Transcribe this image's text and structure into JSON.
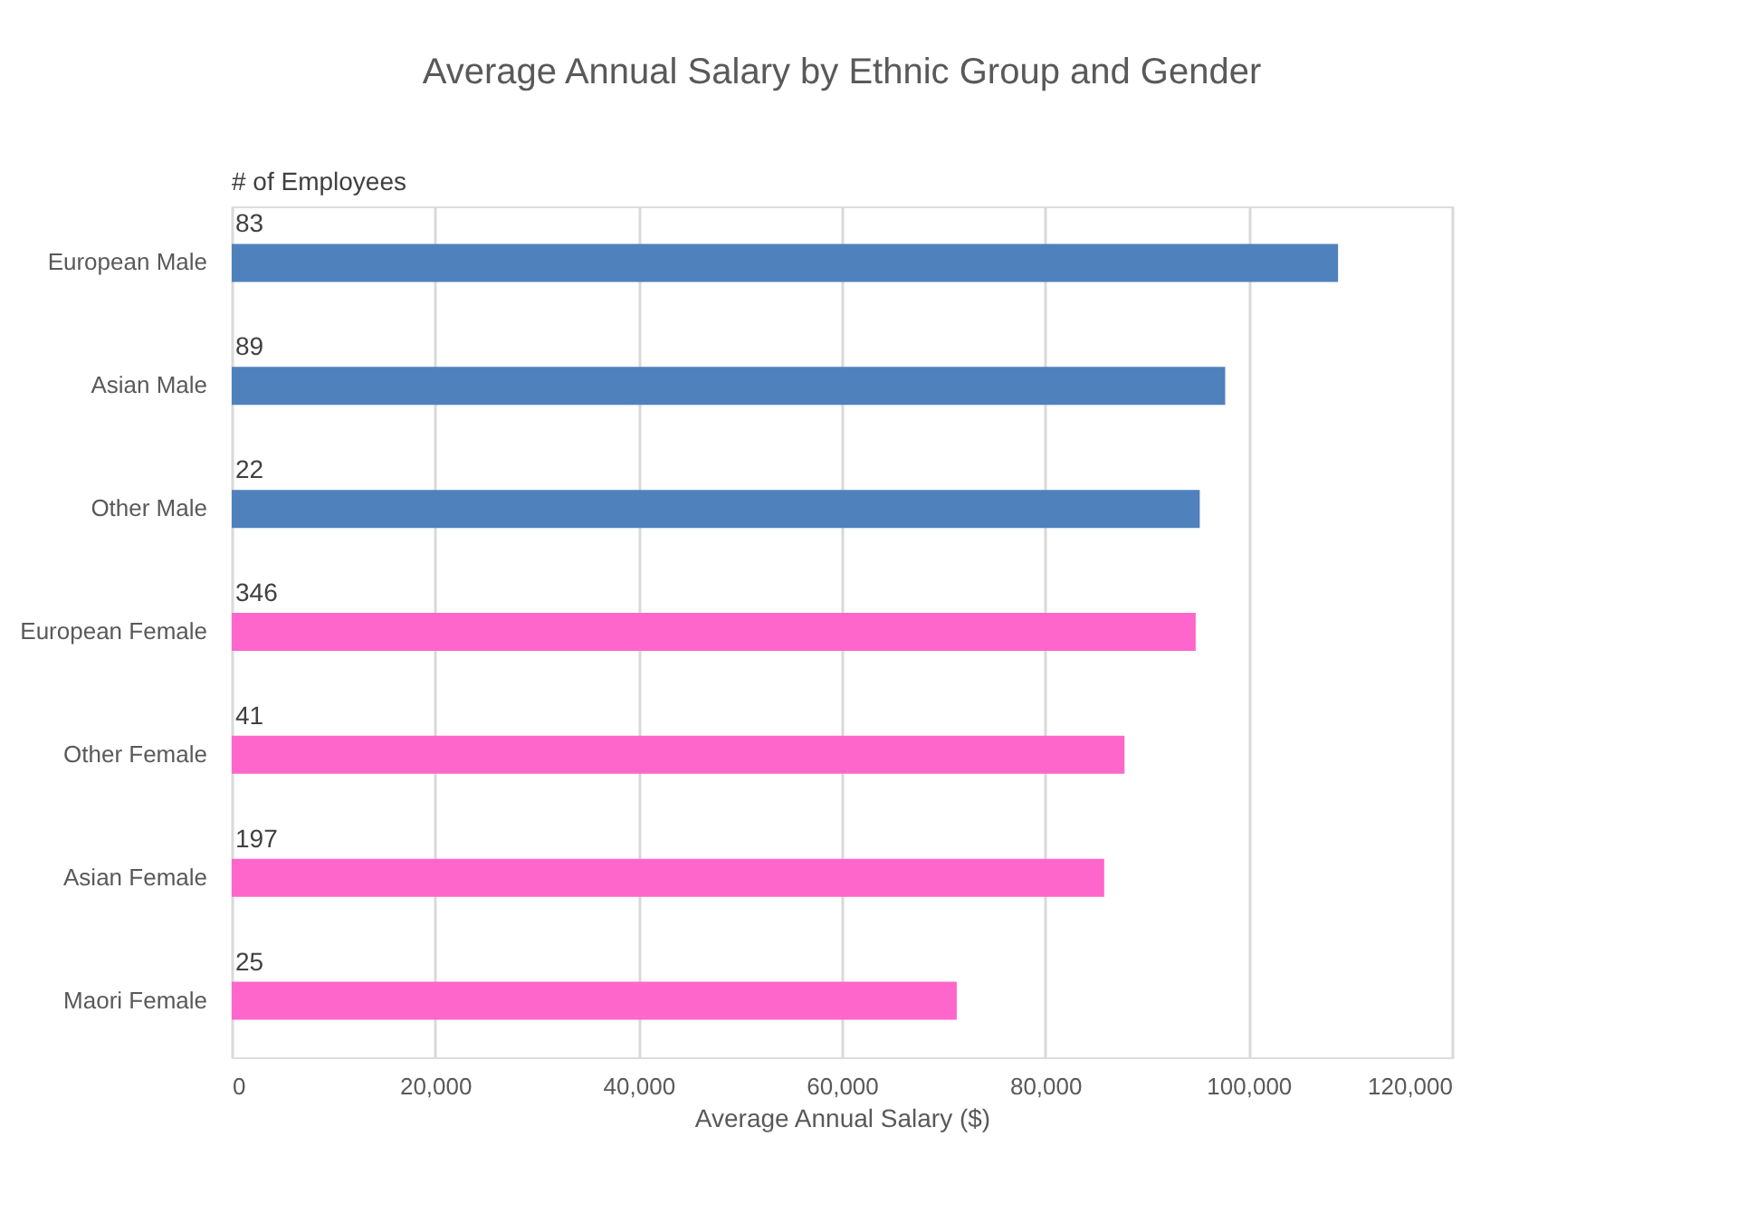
{
  "chart_data": {
    "type": "bar",
    "orientation": "horizontal",
    "title": "Average Annual Salary by Ethnic Group and Gender",
    "xlabel": "Average Annual Salary ($)",
    "ylabel": "# of Employees",
    "categories": [
      "European Male",
      "Asian Male",
      "Other Male",
      "European Female",
      "Other Female",
      "Asian Female",
      "Maori Female"
    ],
    "values": [
      108800,
      97700,
      95200,
      94800,
      87800,
      85800,
      71300
    ],
    "colors": [
      "#4f81bd",
      "#4f81bd",
      "#4f81bd",
      "#ff66cc",
      "#ff66cc",
      "#ff66cc",
      "#ff66cc"
    ],
    "annotations": [
      "83",
      "89",
      "22",
      "346",
      "41",
      "197",
      "25"
    ],
    "xlim": [
      0,
      120000
    ],
    "xticks": [
      {
        "value": 0,
        "label": "0"
      },
      {
        "value": 20000,
        "label": "20,000"
      },
      {
        "value": 40000,
        "label": "40,000"
      },
      {
        "value": 60000,
        "label": "60,000"
      },
      {
        "value": 80000,
        "label": "80,000"
      },
      {
        "value": 100000,
        "label": "100,000"
      },
      {
        "value": 120000,
        "label": "120,000"
      }
    ],
    "grid": "x"
  }
}
